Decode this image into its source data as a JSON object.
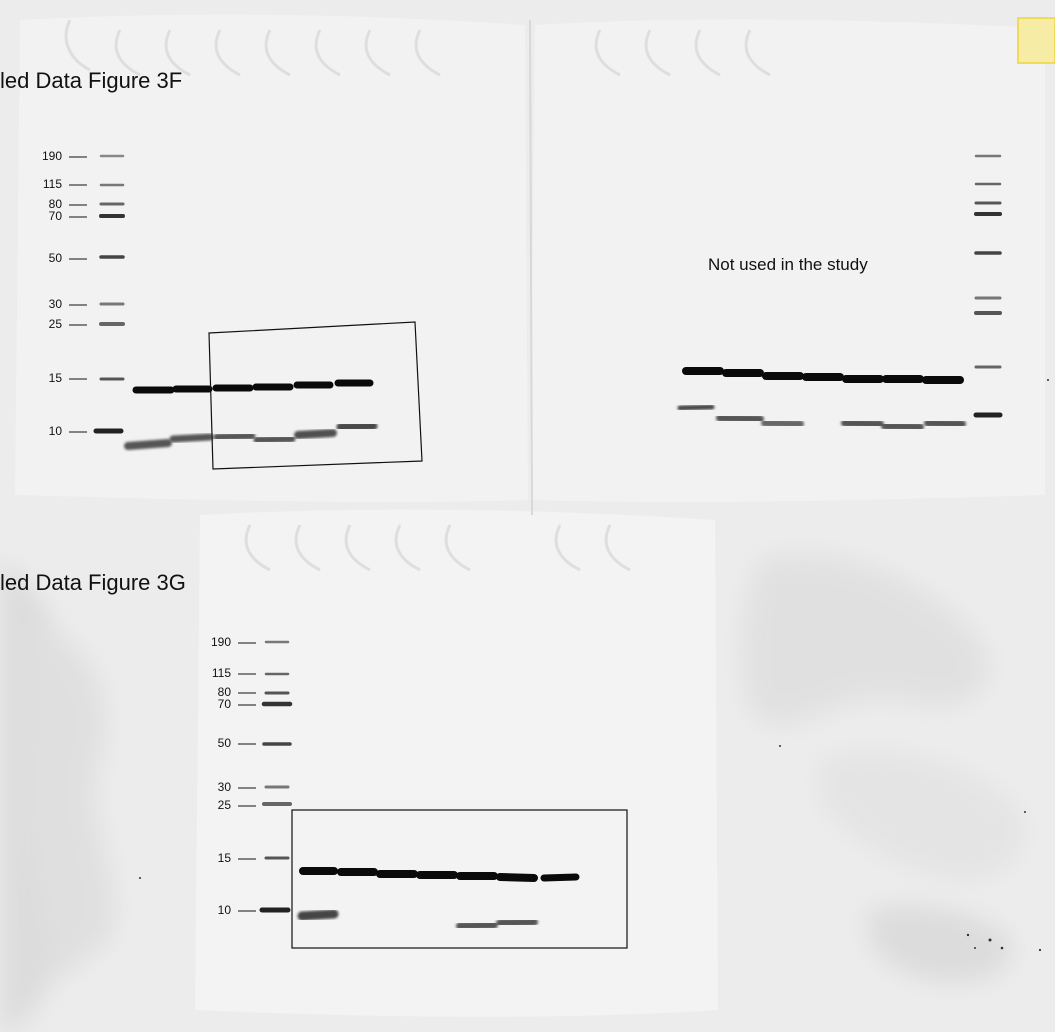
{
  "figures": {
    "fig3f_title": "led Data Figure 3F",
    "fig3g_title": "led Data Figure 3G",
    "not_used_note": "Not used in the study"
  },
  "markers_3f": [
    "190",
    "115",
    "80",
    "70",
    "50",
    "30",
    "25",
    "15",
    "10"
  ],
  "markers_3g": [
    "190",
    "115",
    "80",
    "70",
    "50",
    "30",
    "25",
    "15",
    "10"
  ],
  "colors": {
    "background": "#ececec",
    "membrane": "#f1f1f1",
    "band_dark": "#0a0a0a",
    "crop_box": "#111111",
    "yellow_marker": "#f3e27a"
  }
}
